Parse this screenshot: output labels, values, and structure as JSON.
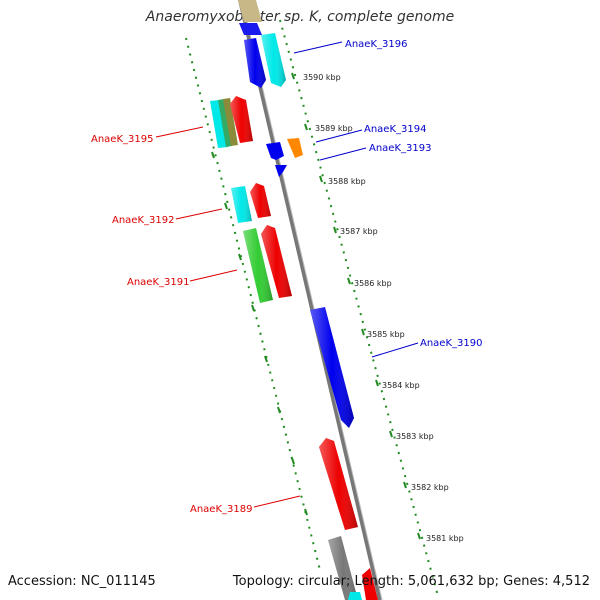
{
  "title": "Anaeromyxobacter sp. K, complete genome",
  "accession_line": "Accession: NC_011145",
  "stats_line": "Topology: circular; Length: 5,061,632 bp; Genes: 4,512",
  "colors": {
    "backbone": "#888888",
    "ticks": "#228B22",
    "forward_label": "#0000cc",
    "reverse_label": "#dd0000",
    "blue": "#0000ee",
    "red": "#ee0000",
    "cyan": "#00e8e8",
    "green": "#33cc33",
    "orange": "#ff8800",
    "olive": "#8b8b3a",
    "gray": "#777777",
    "tan": "#c8b888"
  },
  "kbp_labels": [
    "3590 kbp",
    "3589 kbp",
    "3588 kbp",
    "3587 kbp",
    "3586 kbp",
    "3585 kbp",
    "3584 kbp",
    "3583 kbp",
    "3582 kbp",
    "3581 kbp"
  ],
  "gene_labels": {
    "g3196": "AnaeK_3196",
    "g3194": "AnaeK_3194",
    "g3193": "AnaeK_3193",
    "g3190": "AnaeK_3190",
    "g3195": "AnaeK_3195",
    "g3192": "AnaeK_3192",
    "g3191": "AnaeK_3191",
    "g3189": "AnaeK_3189"
  }
}
